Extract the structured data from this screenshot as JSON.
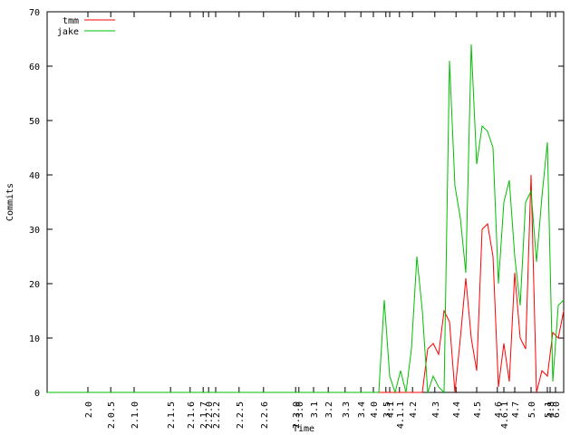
{
  "chart_data": {
    "type": "line",
    "xlabel": "Time",
    "ylabel": "Commits",
    "x": [
      0,
      1,
      2,
      3,
      4,
      5,
      6,
      7,
      8,
      9,
      10,
      11,
      12,
      13,
      14,
      15,
      16,
      17,
      18,
      19,
      20,
      21,
      22,
      23,
      24,
      25,
      26,
      27,
      28,
      29,
      30,
      31,
      32,
      33,
      34,
      35,
      36,
      37,
      38,
      39,
      40,
      41,
      42,
      43,
      44,
      45,
      46,
      47,
      48,
      49,
      50,
      51,
      52,
      53,
      54,
      55,
      56,
      57,
      58,
      59,
      60,
      61,
      62,
      63,
      64,
      65,
      66,
      67,
      68,
      69,
      70,
      71,
      72,
      73,
      74,
      75,
      76,
      77,
      78,
      79,
      80,
      81,
      82,
      83,
      84,
      85,
      86,
      87,
      88,
      89,
      90,
      91,
      92,
      93,
      94,
      95
    ],
    "series": [
      {
        "name": "tmm",
        "color": "#ff0000",
        "values": [
          0,
          0,
          0,
          0,
          0,
          0,
          0,
          0,
          0,
          0,
          0,
          0,
          0,
          0,
          0,
          0,
          0,
          0,
          0,
          0,
          0,
          0,
          0,
          0,
          0,
          0,
          0,
          0,
          0,
          0,
          0,
          0,
          0,
          0,
          0,
          0,
          0,
          0,
          0,
          0,
          0,
          0,
          0,
          0,
          0,
          0,
          0,
          0,
          0,
          0,
          0,
          0,
          0,
          0,
          0,
          0,
          0,
          0,
          0,
          0,
          0,
          0,
          0,
          0,
          0,
          0,
          0,
          0,
          0,
          0,
          8,
          9,
          7,
          15,
          13,
          0,
          10,
          21,
          10,
          4,
          30,
          31,
          25,
          1,
          9,
          2,
          22,
          10,
          8,
          40,
          0,
          4,
          3,
          11,
          10,
          15
        ]
      },
      {
        "name": "jake",
        "color": "#00c000",
        "values": [
          0,
          0,
          0,
          0,
          0,
          0,
          0,
          0,
          0,
          0,
          0,
          0,
          0,
          0,
          0,
          0,
          0,
          0,
          0,
          0,
          0,
          0,
          0,
          0,
          0,
          0,
          0,
          0,
          0,
          0,
          0,
          0,
          0,
          0,
          0,
          0,
          0,
          0,
          0,
          0,
          0,
          0,
          0,
          0,
          0,
          0,
          0,
          0,
          0,
          0,
          0,
          0,
          0,
          0,
          0,
          0,
          0,
          0,
          0,
          0,
          0,
          0,
          17,
          3,
          0,
          4,
          0,
          8,
          25,
          15,
          0,
          3,
          1,
          0,
          61,
          38,
          32,
          22,
          64,
          42,
          49,
          48,
          45,
          20,
          35,
          39,
          25,
          16,
          35,
          37,
          24,
          36,
          46,
          2,
          16,
          17
        ]
      }
    ],
    "xlim": [
      0,
      95
    ],
    "ylim": [
      0,
      70
    ],
    "yticks": [
      0,
      10,
      20,
      30,
      40,
      50,
      60,
      70
    ],
    "xticks": [
      {
        "value": 7.5,
        "label": "2.0"
      },
      {
        "value": 11.7,
        "label": "2.0.5"
      },
      {
        "value": 16,
        "label": "2.1.0"
      },
      {
        "value": 22.7,
        "label": "2.1.5"
      },
      {
        "value": 26.3,
        "label": "2.1.6"
      },
      {
        "value": 28.7,
        "label": "2.1.7"
      },
      {
        "value": 29.7,
        "label": "2.2.0"
      },
      {
        "value": 31,
        "label": "2.2.2"
      },
      {
        "value": 35.3,
        "label": "2.2.5"
      },
      {
        "value": 39.8,
        "label": "2.2.6"
      },
      {
        "value": 45.7,
        "label": "2.3.0"
      },
      {
        "value": 46.3,
        "label": "3.0"
      },
      {
        "value": 49,
        "label": "3.1"
      },
      {
        "value": 51.7,
        "label": "3.2"
      },
      {
        "value": 54.8,
        "label": "3.3"
      },
      {
        "value": 57.7,
        "label": "3.4"
      },
      {
        "value": 60,
        "label": "4.0"
      },
      {
        "value": 62.3,
        "label": "3.5"
      },
      {
        "value": 63,
        "label": "4.1"
      },
      {
        "value": 64.8,
        "label": "4.1.1"
      },
      {
        "value": 67.2,
        "label": "4.2"
      },
      {
        "value": 71.3,
        "label": "4.3"
      },
      {
        "value": 75.2,
        "label": "4.4"
      },
      {
        "value": 79,
        "label": "4.5"
      },
      {
        "value": 82.8,
        "label": "4.6"
      },
      {
        "value": 84,
        "label": "4.6.1"
      },
      {
        "value": 86,
        "label": "4.7"
      },
      {
        "value": 89,
        "label": "5.0"
      },
      {
        "value": 92,
        "label": "5.1"
      },
      {
        "value": 92.5,
        "label": "4.8"
      },
      {
        "value": 93.5,
        "label": "6.0"
      }
    ],
    "legend": "upper left"
  }
}
